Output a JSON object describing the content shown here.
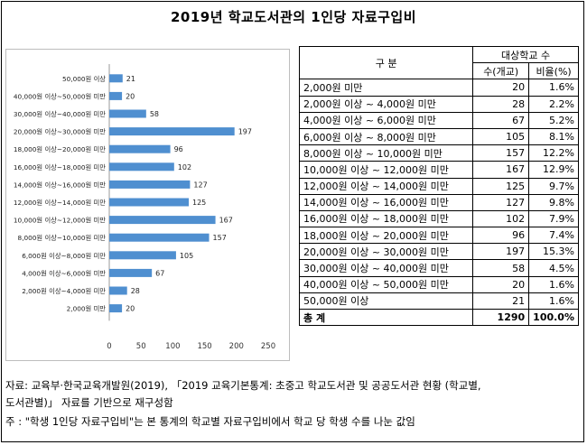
{
  "title": "2019년 학교도서관의 1인당 자료구입비",
  "chart_data": {
    "type": "bar",
    "orientation": "horizontal",
    "categories": [
      "50,000원 이상",
      "40,000원 이상~50,000원 미만",
      "30,000원 이상~40,000원 미만",
      "20,000원 이상~30,000원 미만",
      "18,000원 이상~20,000원 미만",
      "16,000원 이상~18,000원 미만",
      "14,000원 이상~16,000원 미만",
      "12,000원 이상~14,000원 미만",
      "10,000원 이상~12,000원 미만",
      "8,000원 이상~10,000원 미만",
      "6,000원 이상~8,000원 미만",
      "4,000원 이상~6,000원 미만",
      "2,000원 이상~4,000원 미만",
      "2,000원 미만"
    ],
    "values": [
      21,
      20,
      58,
      197,
      96,
      102,
      127,
      125,
      167,
      157,
      105,
      67,
      28,
      20
    ],
    "xlim": [
      0,
      250
    ],
    "xticks": [
      "0",
      "50",
      "100",
      "150",
      "200",
      "250"
    ],
    "color": "#4f8fd0",
    "grid": false,
    "title": "",
    "xlabel": "",
    "ylabel": ""
  },
  "table": {
    "header_group": "구 분",
    "header_schools": "대상학교 수",
    "header_count": "수(개교)",
    "header_ratio": "비율(%)",
    "rows": [
      {
        "label": "2,000원 미만",
        "count": "20",
        "ratio": "1.6%"
      },
      {
        "label": "2,000원 이상 ~  4,000원 미만",
        "count": "28",
        "ratio": "2.2%"
      },
      {
        "label": "4,000원 이상 ~  6,000원 미만",
        "count": "67",
        "ratio": "5.2%"
      },
      {
        "label": "6,000원 이상 ~  8,000원 미만",
        "count": "105",
        "ratio": "8.1%"
      },
      {
        "label": "8,000원 이상 ~  10,000원 미만",
        "count": "157",
        "ratio": "12.2%"
      },
      {
        "label": "10,000원 이상 ~  12,000원 미만",
        "count": "167",
        "ratio": "12.9%"
      },
      {
        "label": "12,000원 이상 ~  14,000원 미만",
        "count": "125",
        "ratio": "9.7%"
      },
      {
        "label": "14,000원 이상 ~  16,000원 미만",
        "count": "127",
        "ratio": "9.8%"
      },
      {
        "label": "16,000원 이상 ~  18,000원 미만",
        "count": "102",
        "ratio": "7.9%"
      },
      {
        "label": "18,000원 이상 ~  20,000원 미만",
        "count": "96",
        "ratio": "7.4%"
      },
      {
        "label": "20,000원 이상 ~  30,000원 미만",
        "count": "197",
        "ratio": "15.3%"
      },
      {
        "label": "30,000원 이상 ~  40,000원 미만",
        "count": "58",
        "ratio": "4.5%"
      },
      {
        "label": "40,000원 이상 ~  50,000원 미만",
        "count": "20",
        "ratio": "1.6%"
      },
      {
        "label": "50,000원 이상",
        "count": "21",
        "ratio": "1.6%"
      }
    ],
    "total_label": "총 계",
    "total_count": "1290",
    "total_ratio": "100.0%"
  },
  "notes": {
    "source_line1": "자료: 교육부·한국교육개발원(2019), 「2019 교육기본통계: 초중고 학교도서관 및 공공도서관 현황 (학교별,",
    "source_line2": "도서관별)」 자료를 기반으로 재구성함",
    "note_line": "주 : \"학생 1인당 자료구입비\"는 본 통계의 학교별 자료구입비에서 학교 당 학생 수를 나눈 값임"
  }
}
